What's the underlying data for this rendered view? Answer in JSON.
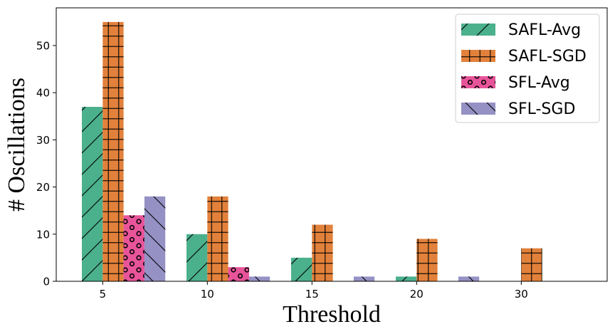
{
  "chart_data": {
    "type": "bar",
    "title": "",
    "xlabel": "Threshold",
    "ylabel": "# Oscillations",
    "categories": [
      "5",
      "10",
      "15",
      "20",
      "30"
    ],
    "ylim": [
      0,
      58
    ],
    "yticks": [
      0,
      10,
      20,
      30,
      40,
      50
    ],
    "grid": false,
    "legend_position": "top-right",
    "series": [
      {
        "name": "SAFL-Avg",
        "color": "#4bb08c",
        "hatch": "forward-slash",
        "values": [
          37,
          10,
          5,
          1,
          0
        ]
      },
      {
        "name": "SAFL-SGD",
        "color": "#e2813b",
        "hatch": "grid",
        "values": [
          55,
          18,
          12,
          9,
          7
        ]
      },
      {
        "name": "SFL-Avg",
        "color": "#e8549a",
        "hatch": "circles",
        "values": [
          14,
          3,
          0,
          0,
          0
        ]
      },
      {
        "name": "SFL-SGD",
        "color": "#9591c4",
        "hatch": "back-slash",
        "values": [
          18,
          1,
          1,
          1,
          0
        ]
      }
    ]
  }
}
